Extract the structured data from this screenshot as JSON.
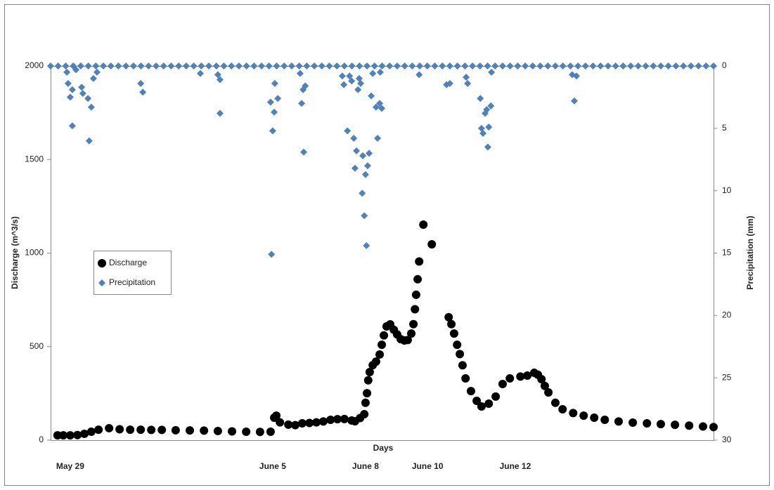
{
  "chart_data": {
    "type": "scatter",
    "x_label": "Days",
    "y_label": "Discharge (m^3/s)",
    "y2_label": "Precipitation (mm)",
    "xlim": [
      0,
      22
    ],
    "xticks": [
      {
        "value": 0.65,
        "label": "May 29"
      },
      {
        "value": 7.37,
        "label": "June 5"
      },
      {
        "value": 10.45,
        "label": "June 8"
      },
      {
        "value": 12.51,
        "label": "June 10"
      },
      {
        "value": 15.42,
        "label": "June 12"
      }
    ],
    "ylim": [
      0,
      2000
    ],
    "yticks": [
      0,
      500,
      1000,
      1500,
      2000
    ],
    "y2lim": [
      30,
      0
    ],
    "y2ticks": [
      0,
      5,
      10,
      15,
      20,
      25,
      30
    ],
    "series": [
      {
        "name": "Discharge",
        "color": "#000000",
        "marker": "circle",
        "x": [
          0.23,
          0.42,
          0.65,
          0.89,
          1.12,
          1.35,
          1.59,
          1.94,
          2.29,
          2.64,
          2.99,
          3.34,
          3.69,
          4.15,
          4.62,
          5.09,
          5.55,
          6.02,
          6.49,
          6.95,
          7.3,
          7.42,
          7.49,
          7.61,
          7.89,
          8.12,
          8.35,
          8.59,
          8.82,
          9.05,
          9.29,
          9.52,
          9.75,
          9.99,
          10.1,
          10.27,
          10.41,
          10.45,
          10.5,
          10.54,
          10.59,
          10.69,
          10.8,
          10.92,
          10.99,
          11.06,
          11.15,
          11.27,
          11.39,
          11.5,
          11.62,
          11.74,
          11.85,
          11.97,
          12.04,
          12.09,
          12.13,
          12.18,
          12.23,
          12.37,
          12.65,
          13.21,
          13.3,
          13.39,
          13.49,
          13.58,
          13.67,
          13.77,
          13.95,
          14.14,
          14.3,
          14.54,
          14.77,
          15.0,
          15.24,
          15.59,
          15.82,
          16.05,
          16.17,
          16.29,
          16.4,
          16.52,
          16.75,
          16.99,
          17.34,
          17.69,
          18.04,
          18.39,
          18.85,
          19.32,
          19.79,
          20.25,
          20.72,
          21.19,
          21.65,
          22.0
        ],
        "values": [
          26,
          26,
          26,
          27,
          34,
          45,
          56,
          64,
          58,
          56,
          56,
          55,
          55,
          53,
          52,
          51,
          49,
          47,
          45,
          44,
          45,
          120,
          131,
          95,
          83,
          80,
          90,
          92,
          95,
          100,
          109,
          112,
          113,
          105,
          101,
          118,
          139,
          200,
          251,
          320,
          364,
          401,
          420,
          458,
          510,
          560,
          608,
          619,
          590,
          565,
          540,
          533,
          535,
          570,
          620,
          700,
          777,
          860,
          955,
          1152,
          1047,
          657,
          620,
          570,
          510,
          460,
          400,
          330,
          262,
          210,
          180,
          195,
          233,
          300,
          330,
          340,
          345,
          360,
          350,
          326,
          290,
          255,
          200,
          165,
          145,
          131,
          120,
          109,
          100,
          94,
          90,
          86,
          82,
          78,
          73,
          70
        ]
      },
      {
        "name": "Precipitation",
        "color": "#4f81bd",
        "marker": "diamond",
        "axis": "y2",
        "x": [
          0,
          0.25,
          0.5,
          0.75,
          1,
          1.25,
          1.5,
          1.75,
          2,
          2.25,
          2.5,
          2.75,
          3,
          3.25,
          3.5,
          3.75,
          4,
          4.25,
          4.5,
          4.75,
          5,
          5.25,
          5.5,
          5.75,
          6,
          6.25,
          6.5,
          6.75,
          7,
          7.25,
          7.5,
          7.75,
          8,
          8.25,
          8.5,
          8.75,
          9,
          9.25,
          9.5,
          9.75,
          10,
          10.25,
          10.5,
          10.75,
          11,
          11.25,
          11.5,
          11.75,
          12,
          12.25,
          12.5,
          12.75,
          13,
          13.25,
          13.5,
          13.75,
          14,
          14.25,
          14.5,
          14.75,
          15,
          15.25,
          15.5,
          15.75,
          16,
          16.25,
          16.5,
          16.75,
          17,
          17.25,
          17.5,
          17.75,
          18,
          18.25,
          18.5,
          18.75,
          19,
          19.25,
          19.5,
          19.75,
          20,
          20.25,
          20.5,
          20.75,
          21,
          21.25,
          21.5,
          21.75,
          22,
          0.54,
          0.58,
          0.65,
          0.72,
          0.72,
          0.84,
          1.03,
          1.07,
          1.24,
          1.28,
          1.35,
          1.42,
          1.54,
          2.99,
          3.06,
          4.97,
          5.55,
          5.62,
          5.62,
          7.3,
          7.37,
          7.42,
          7.44,
          7.54,
          7.33,
          8.28,
          8.33,
          8.38,
          8.4,
          8.45,
          9.68,
          9.73,
          9.85,
          9.92,
          9.99,
          10.06,
          10.1,
          10.15,
          10.2,
          10.24,
          10.29,
          10.34,
          10.36,
          10.41,
          10.45,
          10.48,
          10.52,
          10.57,
          10.64,
          10.69,
          10.8,
          10.85,
          10.92,
          10.94,
          10.99,
          12.23,
          13.14,
          13.25,
          13.79,
          13.84,
          14.26,
          14.3,
          14.35,
          14.42,
          14.47,
          14.51,
          14.54,
          14.61,
          14.63,
          17.31,
          17.38,
          17.45
        ],
        "values": [
          0,
          0,
          0,
          0,
          0,
          0,
          0,
          0,
          0,
          0,
          0,
          0,
          0,
          0,
          0,
          0,
          0,
          0,
          0,
          0,
          0,
          0,
          0,
          0,
          0,
          0,
          0,
          0,
          0,
          0,
          0,
          0,
          0,
          0,
          0,
          0,
          0,
          0,
          0,
          0,
          0,
          0,
          0,
          0,
          0,
          0,
          0,
          0,
          0,
          0,
          0,
          0,
          0,
          0,
          0,
          0,
          0,
          0,
          0,
          0,
          0,
          0,
          0,
          0,
          0,
          0,
          0,
          0,
          0,
          0,
          0,
          0,
          0,
          0,
          0,
          0,
          0,
          0,
          0,
          0,
          0,
          0,
          0,
          0,
          0,
          0,
          0,
          0,
          0,
          0.5,
          1.4,
          2.5,
          1.9,
          4.8,
          0.3,
          1.7,
          2.2,
          2.6,
          6.0,
          3.3,
          1.0,
          0.5,
          1.4,
          2.1,
          0.6,
          0.7,
          3.8,
          1.1,
          2.9,
          5.2,
          3.7,
          1.4,
          2.6,
          15.1,
          0.6,
          3.0,
          1.9,
          6.9,
          1.6,
          0.8,
          1.5,
          5.2,
          0.8,
          1.2,
          5.8,
          8.2,
          6.8,
          1.9,
          1.0,
          1.4,
          10.2,
          7.2,
          12.0,
          8.7,
          14.4,
          8.0,
          7.0,
          2.4,
          0.6,
          3.3,
          5.8,
          3.0,
          0.5,
          3.4,
          0.7,
          1.5,
          1.4,
          0.9,
          1.4,
          2.6,
          5.0,
          5.4,
          3.8,
          3.5,
          6.5,
          4.9,
          3.2,
          0.5,
          0.7,
          2.8,
          0.8
        ]
      }
    ]
  }
}
